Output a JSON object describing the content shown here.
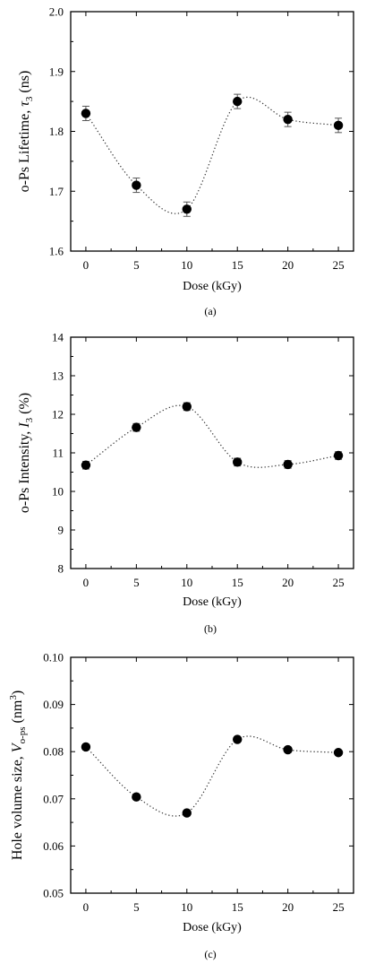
{
  "chart_data": [
    {
      "type": "scatter",
      "panel_label": "(a)",
      "xlabel": "Dose (kGy)",
      "ylabel": {
        "main": "o-Ps Lifetime, ",
        "var": "τ",
        "sub": "3",
        "tail": " (ns)"
      },
      "x_ticks": [
        "0",
        "5",
        "10",
        "15",
        "20",
        "25"
      ],
      "y_ticks": [
        "1.6",
        "1.7",
        "1.8",
        "1.9",
        "2.0"
      ],
      "xlim": [
        -1.5,
        26.5
      ],
      "ylim": [
        1.6,
        2.0
      ],
      "y_tick_values": [
        1.6,
        1.7,
        1.8,
        1.9,
        2.0
      ],
      "x": [
        0,
        5,
        10,
        15,
        20,
        25
      ],
      "values": [
        1.83,
        1.71,
        1.67,
        1.85,
        1.82,
        1.81
      ],
      "error": [
        0.012,
        0.012,
        0.012,
        0.012,
        0.012,
        0.012
      ],
      "fit_line": "dotted"
    },
    {
      "type": "scatter",
      "panel_label": "(b)",
      "xlabel": "Dose (kGy)",
      "ylabel": {
        "main": "o-Ps Intensity, ",
        "var": "I",
        "sub": "3",
        "tail": " (%)"
      },
      "x_ticks": [
        "0",
        "5",
        "10",
        "15",
        "20",
        "25"
      ],
      "y_ticks": [
        "8",
        "9",
        "10",
        "11",
        "12",
        "13",
        "14"
      ],
      "xlim": [
        -1.5,
        26.5
      ],
      "ylim": [
        8,
        14
      ],
      "y_tick_values": [
        8,
        9,
        10,
        11,
        12,
        13,
        14
      ],
      "x": [
        0,
        5,
        10,
        15,
        20,
        25
      ],
      "values": [
        10.68,
        11.66,
        12.2,
        10.76,
        10.7,
        10.93
      ],
      "error": [
        0.1,
        0.1,
        0.1,
        0.1,
        0.1,
        0.1
      ],
      "fit_line": "dotted"
    },
    {
      "type": "scatter",
      "panel_label": "(c)",
      "xlabel": "Dose (kGy)",
      "ylabel": {
        "main": "Hole volume size, ",
        "var": "V",
        "sub": "o-ps",
        "tail": " (nm",
        "sup": "3",
        "close": ")"
      },
      "x_ticks": [
        "0",
        "5",
        "10",
        "15",
        "20",
        "25"
      ],
      "y_ticks": [
        "0.05",
        "0.06",
        "0.07",
        "0.08",
        "0.09",
        "0.10"
      ],
      "xlim": [
        -1.5,
        26.5
      ],
      "ylim": [
        0.05,
        0.1
      ],
      "y_tick_values": [
        0.05,
        0.06,
        0.07,
        0.08,
        0.09,
        0.1
      ],
      "x": [
        0,
        5,
        10,
        15,
        20,
        25
      ],
      "values": [
        0.081,
        0.0704,
        0.067,
        0.0826,
        0.0804,
        0.0798
      ],
      "error": [
        0,
        0,
        0,
        0,
        0,
        0
      ],
      "fit_line": "dotted"
    }
  ]
}
